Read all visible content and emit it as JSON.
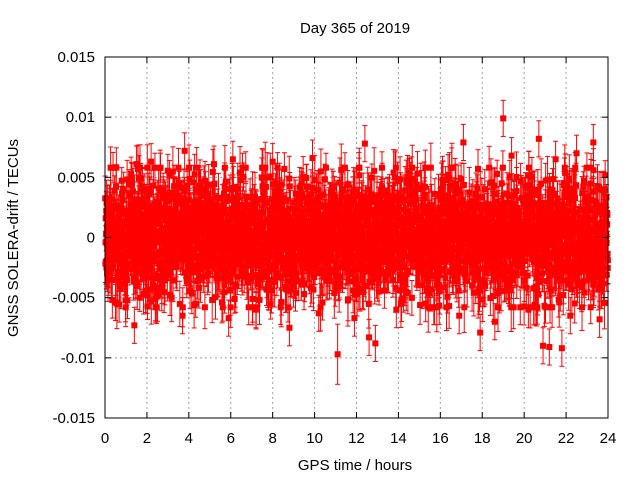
{
  "chart_data": {
    "type": "scatter",
    "title": "Day 365 of 2019",
    "xlabel": "GPS time / hours",
    "ylabel": "GNSS SOLERA-drift / TECUs",
    "xlim": [
      0,
      24
    ],
    "ylim": [
      -0.015,
      0.015
    ],
    "xticks": [
      0,
      2,
      4,
      6,
      8,
      10,
      12,
      14,
      16,
      18,
      20,
      22,
      24
    ],
    "yticks": [
      -0.015,
      -0.01,
      -0.005,
      0,
      0.005,
      0.01,
      0.015
    ],
    "ytick_labels": [
      "-0.015",
      "-0.01",
      "-0.005",
      "0",
      "0.005",
      "0.01",
      "0.015"
    ],
    "xtick_labels": [
      "0",
      "2",
      "4",
      "6",
      "8",
      "10",
      "12",
      "14",
      "16",
      "18",
      "20",
      "22",
      "24"
    ],
    "grid": true,
    "legend": "none",
    "marker_color": "#ff0000",
    "marker": "square",
    "error_bars": true,
    "sample_interval_hours": 0.0083,
    "noise_std": 0.0025,
    "typical_error": 0.0018,
    "points": [
      {
        "x": 0.05,
        "y": 0.0016,
        "err": 0.0015
      },
      {
        "x": 0.1,
        "y": -0.003,
        "err": 0.0015
      },
      {
        "x": 0.35,
        "y": -0.0052,
        "err": 0.0015
      },
      {
        "x": 0.5,
        "y": -0.0054,
        "err": 0.0015
      },
      {
        "x": 1.4,
        "y": -0.0073,
        "err": 0.0015
      },
      {
        "x": 1.5,
        "y": 0.0061,
        "err": 0.0015
      },
      {
        "x": 2.2,
        "y": 0.0063,
        "err": 0.0015
      },
      {
        "x": 2.5,
        "y": -0.0045,
        "err": 0.0015
      },
      {
        "x": 3.7,
        "y": -0.0065,
        "err": 0.0015
      },
      {
        "x": 3.8,
        "y": 0.0072,
        "err": 0.0015
      },
      {
        "x": 5.2,
        "y": 0.0061,
        "err": 0.0015
      },
      {
        "x": 5.9,
        "y": -0.0067,
        "err": 0.0015
      },
      {
        "x": 6.1,
        "y": 0.0065,
        "err": 0.0015
      },
      {
        "x": 7.2,
        "y": -0.006,
        "err": 0.0015
      },
      {
        "x": 8.0,
        "y": 0.0063,
        "err": 0.0015
      },
      {
        "x": 8.8,
        "y": -0.0075,
        "err": 0.0015
      },
      {
        "x": 9.9,
        "y": 0.0066,
        "err": 0.0015
      },
      {
        "x": 10.2,
        "y": -0.0063,
        "err": 0.0015
      },
      {
        "x": 11.1,
        "y": -0.0097,
        "err": 0.0025
      },
      {
        "x": 11.9,
        "y": -0.0067,
        "err": 0.0015
      },
      {
        "x": 12.4,
        "y": 0.0078,
        "err": 0.0015
      },
      {
        "x": 12.6,
        "y": -0.0083,
        "err": 0.0015
      },
      {
        "x": 12.9,
        "y": -0.0088,
        "err": 0.0015
      },
      {
        "x": 13.9,
        "y": -0.006,
        "err": 0.0015
      },
      {
        "x": 15.3,
        "y": -0.0055,
        "err": 0.0015
      },
      {
        "x": 16.9,
        "y": -0.0065,
        "err": 0.0015
      },
      {
        "x": 17.1,
        "y": 0.0079,
        "err": 0.0015
      },
      {
        "x": 17.9,
        "y": -0.0079,
        "err": 0.0015
      },
      {
        "x": 18.6,
        "y": -0.007,
        "err": 0.0015
      },
      {
        "x": 19.0,
        "y": 0.0099,
        "err": 0.0015
      },
      {
        "x": 19.4,
        "y": 0.0068,
        "err": 0.0015
      },
      {
        "x": 20.2,
        "y": -0.006,
        "err": 0.0015
      },
      {
        "x": 20.7,
        "y": 0.0082,
        "err": 0.0015
      },
      {
        "x": 20.9,
        "y": -0.009,
        "err": 0.0015
      },
      {
        "x": 21.2,
        "y": -0.0091,
        "err": 0.0015
      },
      {
        "x": 21.5,
        "y": 0.0065,
        "err": 0.0015
      },
      {
        "x": 21.8,
        "y": -0.0092,
        "err": 0.0015
      },
      {
        "x": 22.2,
        "y": -0.0065,
        "err": 0.0015
      },
      {
        "x": 22.5,
        "y": 0.007,
        "err": 0.0015
      },
      {
        "x": 23.3,
        "y": 0.0079,
        "err": 0.0015
      },
      {
        "x": 23.6,
        "y": -0.0068,
        "err": 0.0015
      },
      {
        "x": 23.8,
        "y": 0.004,
        "err": 0.0015
      }
    ]
  }
}
